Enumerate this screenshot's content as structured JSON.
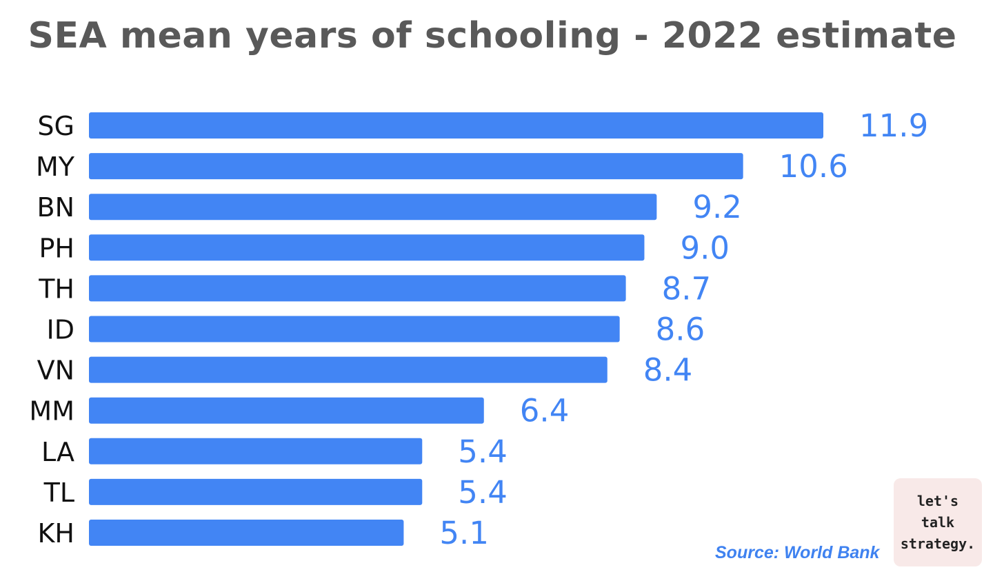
{
  "chart_data": {
    "type": "bar",
    "orientation": "horizontal",
    "title": "SEA mean years of schooling - 2022 estimate",
    "categories": [
      "SG",
      "MY",
      "BN",
      "PH",
      "TH",
      "ID",
      "VN",
      "MM",
      "LA",
      "TL",
      "KH"
    ],
    "values": [
      11.9,
      10.6,
      9.2,
      9.0,
      8.7,
      8.6,
      8.4,
      6.4,
      5.4,
      5.4,
      5.1
    ],
    "value_labels": [
      "11.9",
      "10.6",
      "9.2",
      "9.0",
      "8.7",
      "8.6",
      "8.4",
      "6.4",
      "5.4",
      "5.4",
      "5.1"
    ],
    "xlabel": "",
    "ylabel": "",
    "xlim": [
      0,
      11.9
    ],
    "grid": false,
    "bar_color": "#4285f4",
    "label_color": "#4285f4",
    "source": "Source: World Bank"
  },
  "logo": {
    "lines": [
      "let's",
      "talk",
      "strategy."
    ]
  }
}
